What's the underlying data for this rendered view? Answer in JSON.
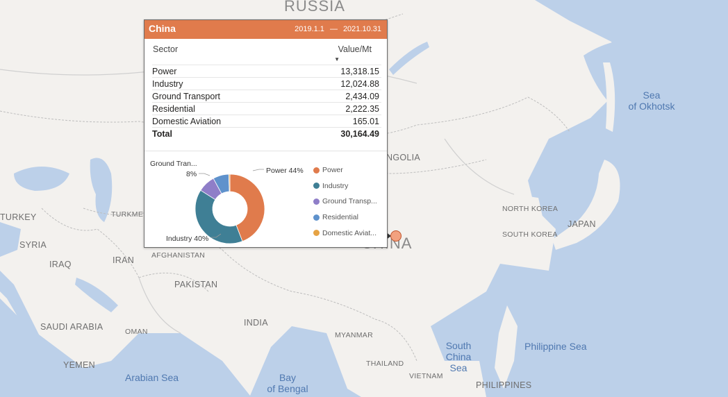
{
  "map": {
    "labels": {
      "russia": "RUSSIA",
      "sea_okhotsk_1": "Sea",
      "sea_okhotsk_2": "of Okhotsk",
      "mongolia": "NGOLIA",
      "turkey": "TURKEY",
      "turkmen": "TURKMEN",
      "syria": "SYRIA",
      "iraq": "IRAQ",
      "iran": "IRAN",
      "afghanistan": "AFGHANISTAN",
      "pakistan": "PAKISTAN",
      "china": "CHINA",
      "north_korea": "NORTH KOREA",
      "south_korea": "SOUTH KOREA",
      "japan": "JAPAN",
      "india": "INDIA",
      "saudi": "SAUDI ARABIA",
      "oman": "OMAN",
      "yemen": "YEMEN",
      "myanmar": "MYANMAR",
      "thailand": "THAILAND",
      "vietnam": "VIETNAM",
      "philippines": "PHILIPPINES",
      "arabian_sea": "Arabian Sea",
      "bay_1": "Bay",
      "bay_2": "of Bengal",
      "scs_1": "South",
      "scs_2": "China",
      "scs_3": "Sea",
      "philippine_sea": "Philippine Sea"
    }
  },
  "tooltip": {
    "title": "China",
    "date_start": "2019.1.1",
    "date_sep": "—",
    "date_end": "2021.10.31",
    "col_sector": "Sector",
    "col_value": "Value/Mt",
    "rows": [
      {
        "sector": "Power",
        "value": "13,318.15"
      },
      {
        "sector": "Industry",
        "value": "12,024.88"
      },
      {
        "sector": "Ground Transport",
        "value": "2,434.09"
      },
      {
        "sector": "Residential",
        "value": "2,222.35"
      },
      {
        "sector": "Domestic Aviation",
        "value": "165.01"
      }
    ],
    "total_label": "Total",
    "total_value": "30,164.49"
  },
  "chart_data": {
    "type": "pie",
    "donut": true,
    "categories": [
      "Power",
      "Industry",
      "Ground Transport",
      "Residential",
      "Domestic Aviation"
    ],
    "values": [
      13318.15,
      12024.88,
      2434.09,
      2222.35,
      165.01
    ],
    "colors": [
      "#e07b4c",
      "#3f7f95",
      "#8f7ec8",
      "#5f92cc",
      "#e6a344"
    ],
    "data_labels": {
      "power": "Power 44%",
      "industry": "Industry 40%",
      "ground_1": "Ground Tran...",
      "ground_2": "8%"
    },
    "legend": [
      "Power",
      "Industry",
      "Ground Transp...",
      "Residential",
      "Domestic Aviat..."
    ],
    "legend_position": "right"
  }
}
